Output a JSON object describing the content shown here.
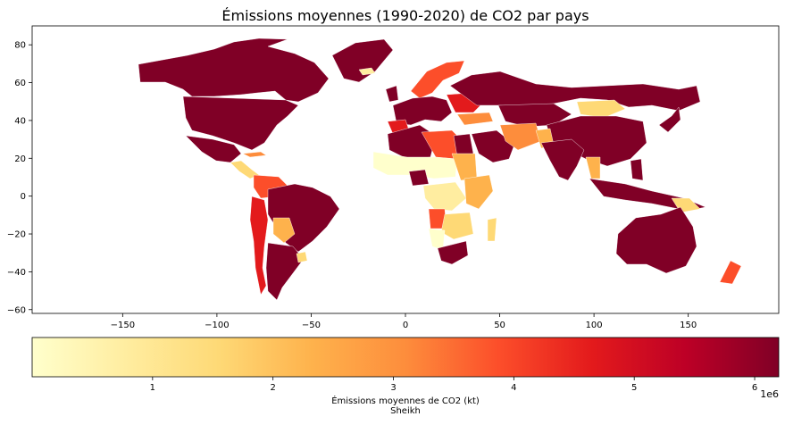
{
  "chart_data": {
    "type": "choropleth",
    "title": "Émissions moyennes (1990-2020) de CO2 par pays",
    "xlabel": "",
    "ylabel": "",
    "x_ticks": [
      "−150",
      "−100",
      "−50",
      "0",
      "50",
      "100",
      "150"
    ],
    "x_tick_values": [
      -150,
      -100,
      -50,
      0,
      50,
      100,
      150
    ],
    "y_ticks": [
      "80",
      "60",
      "40",
      "20",
      "0",
      "−20",
      "−40",
      "−60"
    ],
    "y_tick_values": [
      80,
      60,
      40,
      20,
      0,
      -20,
      -40,
      -60
    ],
    "xlim": [
      -198,
      198
    ],
    "ylim": [
      -62,
      90
    ],
    "colorbar": {
      "label": "Émissions moyennes de CO2 (kt)",
      "sublabel": "Sheikh",
      "ticks": [
        "1",
        "2",
        "3",
        "4",
        "5",
        "6"
      ],
      "tick_values": [
        1,
        2,
        3,
        4,
        5,
        6
      ],
      "offset_text": "1e6",
      "range": [
        0,
        6.2
      ],
      "colormap": "YlOrRd",
      "stops": [
        "#ffffcc",
        "#ffeda0",
        "#fed976",
        "#feb24c",
        "#fd8d3c",
        "#fc4e2a",
        "#e31a1c",
        "#bd0026",
        "#800026"
      ]
    },
    "grid": false,
    "legend": "colorbar-bottom"
  }
}
